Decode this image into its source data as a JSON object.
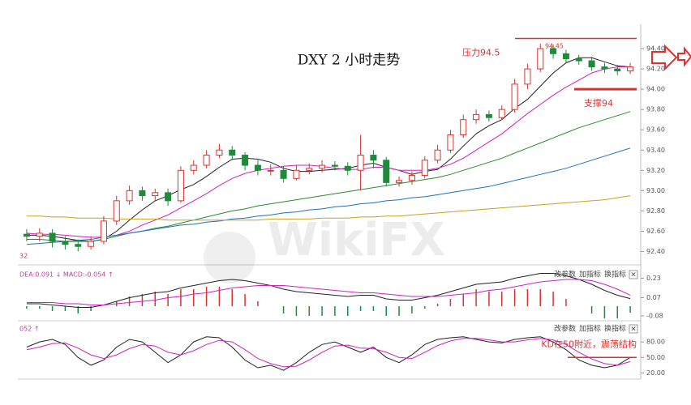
{
  "chart_data": [
    {
      "type": "candlestick",
      "title": "DXY 2 小时走势",
      "open": [
        92.57,
        92.55,
        92.58,
        92.5,
        92.47,
        92.45,
        92.5,
        92.7,
        92.9,
        93.0,
        92.95,
        92.98,
        92.9,
        93.2,
        93.25,
        93.35,
        93.4,
        93.35,
        93.25,
        93.2,
        93.2,
        93.12,
        93.2,
        93.22,
        93.25,
        93.24,
        93.2,
        93.35,
        93.3,
        93.08,
        93.1,
        93.15,
        93.3,
        93.4,
        93.55,
        93.7,
        93.75,
        93.72,
        93.8,
        94.05,
        94.2,
        94.4,
        94.35,
        94.3,
        94.28,
        94.22,
        94.2,
        94.18
      ],
      "high": [
        92.62,
        92.63,
        92.62,
        92.55,
        92.52,
        92.55,
        92.75,
        92.95,
        93.05,
        93.04,
        93.02,
        93.02,
        93.24,
        93.3,
        93.4,
        93.46,
        93.44,
        93.38,
        93.3,
        93.26,
        93.24,
        93.25,
        93.27,
        93.3,
        93.29,
        93.28,
        93.55,
        93.4,
        93.33,
        93.14,
        93.19,
        93.34,
        93.45,
        93.6,
        93.75,
        93.8,
        93.79,
        93.84,
        94.1,
        94.25,
        94.45,
        94.44,
        94.39,
        94.34,
        94.32,
        94.26,
        94.24,
        94.26
      ],
      "low": [
        92.5,
        92.5,
        92.44,
        92.42,
        92.4,
        92.42,
        92.47,
        92.66,
        92.86,
        92.9,
        92.9,
        92.85,
        92.88,
        93.16,
        93.22,
        93.32,
        93.3,
        93.2,
        93.15,
        93.15,
        93.08,
        93.1,
        93.16,
        93.18,
        93.2,
        93.15,
        93.0,
        93.22,
        93.04,
        93.04,
        93.06,
        93.12,
        93.27,
        93.37,
        93.52,
        93.66,
        93.68,
        93.7,
        93.77,
        94.0,
        94.17,
        94.3,
        94.26,
        94.24,
        94.18,
        94.16,
        94.14,
        94.15
      ],
      "close": [
        92.55,
        92.58,
        92.5,
        92.47,
        92.45,
        92.5,
        92.7,
        92.9,
        93.0,
        92.95,
        92.98,
        92.9,
        93.2,
        93.25,
        93.35,
        93.4,
        93.35,
        93.25,
        93.2,
        93.2,
        93.12,
        93.2,
        93.22,
        93.25,
        93.24,
        93.2,
        93.35,
        93.3,
        93.08,
        93.1,
        93.15,
        93.3,
        93.4,
        93.55,
        93.7,
        93.75,
        93.72,
        93.8,
        94.05,
        94.2,
        94.4,
        94.35,
        94.3,
        94.28,
        94.22,
        94.2,
        94.18,
        94.22
      ],
      "up_color": "#e0302e",
      "down_color": "#1f8a3a",
      "series": [
        {
          "color": "#222222",
          "values": [
            92.56,
            92.56,
            92.55,
            92.53,
            92.51,
            92.5,
            92.52,
            92.6,
            92.71,
            92.81,
            92.9,
            92.95,
            93.01,
            93.06,
            93.14,
            93.23,
            93.31,
            93.32,
            93.31,
            93.28,
            93.22,
            93.19,
            93.19,
            93.2,
            93.21,
            93.22,
            93.25,
            93.27,
            93.23,
            93.2,
            93.16,
            93.19,
            93.21,
            93.31,
            93.44,
            93.56,
            93.64,
            93.7,
            93.81,
            93.9,
            94.03,
            94.16,
            94.26,
            94.31,
            94.31,
            94.27,
            94.23,
            94.22
          ]
        },
        {
          "color": "#d020c0",
          "values": [
            92.58,
            92.57,
            92.57,
            92.56,
            92.55,
            92.54,
            92.54,
            92.56,
            92.6,
            92.66,
            92.71,
            92.76,
            92.83,
            92.9,
            92.97,
            93.05,
            93.12,
            93.17,
            93.2,
            93.22,
            93.24,
            93.25,
            93.25,
            93.24,
            93.22,
            93.21,
            93.21,
            93.23,
            93.23,
            93.2,
            93.2,
            93.2,
            93.22,
            93.26,
            93.32,
            93.4,
            93.48,
            93.56,
            93.66,
            93.76,
            93.85,
            93.94,
            94.02,
            94.09,
            94.16,
            94.2,
            94.22,
            94.22
          ]
        },
        {
          "color": "#2a8a2a",
          "values": [
            92.52,
            92.52,
            92.51,
            92.5,
            92.5,
            92.5,
            92.52,
            92.55,
            92.58,
            92.6,
            92.63,
            92.65,
            92.68,
            92.71,
            92.74,
            92.77,
            92.8,
            92.82,
            92.85,
            92.87,
            92.89,
            92.91,
            92.93,
            92.95,
            92.97,
            92.99,
            93.01,
            93.03,
            93.05,
            93.07,
            93.09,
            93.11,
            93.13,
            93.16,
            93.2,
            93.24,
            93.28,
            93.32,
            93.37,
            93.42,
            93.47,
            93.52,
            93.57,
            93.62,
            93.66,
            93.7,
            93.74,
            93.78
          ]
        },
        {
          "color": "#1f6fc0",
          "values": [
            92.47,
            92.48,
            92.49,
            92.5,
            92.51,
            92.52,
            92.54,
            92.56,
            92.58,
            92.6,
            92.62,
            92.64,
            92.66,
            92.67,
            92.69,
            92.7,
            92.72,
            92.73,
            92.75,
            92.76,
            92.78,
            92.79,
            92.81,
            92.82,
            92.84,
            92.85,
            92.87,
            92.88,
            92.9,
            92.91,
            92.93,
            92.94,
            92.96,
            92.98,
            93.0,
            93.02,
            93.04,
            93.07,
            93.1,
            93.13,
            93.16,
            93.19,
            93.22,
            93.26,
            93.3,
            93.34,
            93.38,
            93.42
          ]
        },
        {
          "color": "#c8a020",
          "values": [
            92.75,
            92.75,
            92.74,
            92.74,
            92.73,
            92.73,
            92.73,
            92.72,
            92.72,
            92.72,
            92.72,
            92.71,
            92.71,
            92.71,
            92.71,
            92.71,
            92.71,
            92.71,
            92.71,
            92.72,
            92.72,
            92.72,
            92.72,
            92.73,
            92.73,
            92.73,
            92.74,
            92.74,
            92.75,
            92.75,
            92.76,
            92.77,
            92.78,
            92.79,
            92.8,
            92.81,
            92.82,
            92.83,
            92.84,
            92.85,
            92.86,
            92.87,
            92.88,
            92.89,
            92.9,
            92.91,
            92.93,
            92.95
          ]
        }
      ],
      "ylim": [
        92.3,
        94.6
      ],
      "yticks": [
        {
          "value": 92.4,
          "label": "92.40"
        },
        {
          "value": 92.6,
          "label": "92.60"
        },
        {
          "value": 92.8,
          "label": "92.80"
        },
        {
          "value": 93,
          "label": "93.00"
        },
        {
          "value": 93.2,
          "label": "93.20"
        },
        {
          "value": 93.4,
          "label": "93.40"
        },
        {
          "value": 93.6,
          "label": "93.60"
        },
        {
          "value": 93.8,
          "label": "93.80"
        },
        {
          "value": 94,
          "label": "94.00"
        },
        {
          "value": 94.2,
          "label": "94.20"
        },
        {
          "value": 94.4,
          "label": "94.40"
        }
      ],
      "reference_lines": [
        {
          "value": 94.5,
          "label": "压力94.5",
          "color": "#e0302e"
        },
        {
          "value": 94.0,
          "label": "支撑94",
          "color": "#e0302e"
        }
      ],
      "peak_label": "94.45",
      "edge_label": "32",
      "watermark": "WikiFX"
    },
    {
      "type": "macd",
      "legend": "DEA:0.091 ↓ MACD:-0.054 ↑",
      "controls": [
        "改参数",
        "加指标",
        "换指标",
        "×"
      ],
      "series": [
        {
          "color": "#222222",
          "values": [
            0.02,
            0.02,
            0.01,
            0.0,
            -0.01,
            -0.01,
            0.01,
            0.04,
            0.07,
            0.09,
            0.11,
            0.12,
            0.15,
            0.17,
            0.19,
            0.21,
            0.22,
            0.21,
            0.19,
            0.17,
            0.14,
            0.12,
            0.11,
            0.1,
            0.09,
            0.08,
            0.09,
            0.09,
            0.06,
            0.05,
            0.05,
            0.07,
            0.09,
            0.12,
            0.15,
            0.18,
            0.19,
            0.2,
            0.23,
            0.25,
            0.27,
            0.27,
            0.25,
            0.22,
            0.18,
            0.13,
            0.09,
            0.063
          ]
        },
        {
          "color": "#d020c0",
          "values": [
            0.03,
            0.03,
            0.03,
            0.02,
            0.02,
            0.01,
            0.01,
            0.02,
            0.03,
            0.04,
            0.05,
            0.07,
            0.08,
            0.1,
            0.11,
            0.13,
            0.15,
            0.16,
            0.17,
            0.17,
            0.17,
            0.16,
            0.15,
            0.14,
            0.13,
            0.12,
            0.11,
            0.11,
            0.1,
            0.09,
            0.08,
            0.08,
            0.08,
            0.09,
            0.1,
            0.11,
            0.13,
            0.14,
            0.16,
            0.18,
            0.2,
            0.21,
            0.22,
            0.22,
            0.21,
            0.18,
            0.14,
            0.091
          ]
        }
      ],
      "histogram": [
        -0.02,
        -0.02,
        -0.04,
        -0.04,
        -0.06,
        -0.04,
        0,
        0.04,
        0.08,
        0.1,
        0.12,
        0.1,
        0.14,
        0.14,
        0.16,
        0.16,
        0.14,
        0.1,
        0.04,
        0,
        -0.06,
        -0.08,
        -0.08,
        -0.08,
        -0.08,
        -0.08,
        -0.04,
        -0.04,
        -0.08,
        -0.08,
        -0.06,
        -0.02,
        0.02,
        0.06,
        0.1,
        0.14,
        0.12,
        0.12,
        0.14,
        0.14,
        0.14,
        0.12,
        0.06,
        0,
        -0.06,
        -0.1,
        -0.1,
        -0.054
      ],
      "up_color": "#e0302e",
      "down_color": "#1f8a3a",
      "ylim": [
        -0.1,
        0.3
      ],
      "yticks": [
        0.23,
        0.07,
        -0.08
      ]
    },
    {
      "type": "kd",
      "legend": "052 ↑",
      "controls": [
        "改参数",
        "加指标",
        "换指标",
        "×"
      ],
      "series": [
        {
          "color": "#222222",
          "values": [
            70,
            80,
            85,
            75,
            50,
            35,
            45,
            70,
            85,
            80,
            60,
            40,
            55,
            80,
            90,
            88,
            70,
            45,
            30,
            35,
            25,
            40,
            60,
            75,
            80,
            70,
            60,
            70,
            50,
            40,
            55,
            75,
            85,
            88,
            90,
            85,
            80,
            78,
            85,
            88,
            90,
            80,
            65,
            45,
            35,
            30,
            35,
            50
          ]
        },
        {
          "color": "#d020c0",
          "values": [
            65,
            70,
            77,
            78,
            68,
            55,
            48,
            55,
            67,
            75,
            72,
            60,
            55,
            63,
            75,
            83,
            80,
            65,
            48,
            38,
            32,
            33,
            45,
            60,
            72,
            74,
            68,
            67,
            60,
            50,
            48,
            60,
            73,
            82,
            87,
            87,
            84,
            80,
            80,
            84,
            87,
            84,
            75,
            60,
            47,
            38,
            35,
            42
          ]
        }
      ],
      "ylim": [
        5,
        110
      ],
      "yticks": [
        {
          "value": 80,
          "label": "80.00"
        },
        {
          "value": 50,
          "label": "50.00"
        },
        {
          "value": 20,
          "label": "20.00"
        }
      ],
      "reference_lines": [
        {
          "value": 50,
          "label": "KD在50附近，震荡结构",
          "color": "#e0302e"
        }
      ]
    }
  ]
}
